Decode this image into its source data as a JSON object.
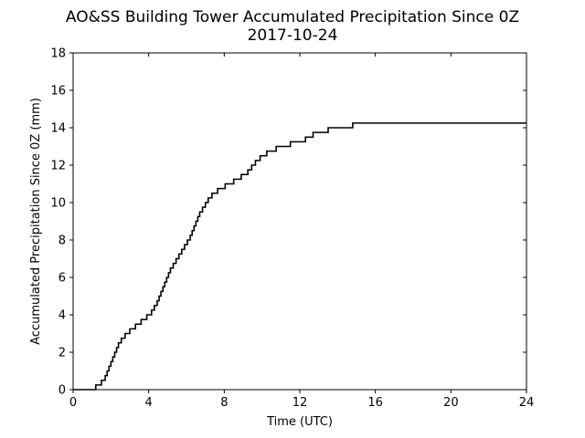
{
  "chart_data": {
    "type": "line",
    "title": "AO&SS Building Tower Accumulated Precipitation Since 0Z",
    "subtitle": "2017-10-24",
    "xlabel": "Time (UTC)",
    "ylabel": "Accumulated Precipitation Since 0Z (mm)",
    "xlim": [
      0,
      24
    ],
    "ylim": [
      0,
      18
    ],
    "xticks": [
      0,
      4,
      8,
      12,
      16,
      20,
      24
    ],
    "yticks": [
      0,
      2,
      4,
      6,
      8,
      10,
      12,
      14,
      16,
      18
    ],
    "grid": false,
    "line_color": "#000000",
    "step": true,
    "series": [
      {
        "x": [
          0,
          1.2,
          1.5,
          1.7,
          1.8,
          1.9,
          2.0,
          2.1,
          2.2,
          2.3,
          2.4,
          2.55,
          2.75,
          3.0,
          3.3,
          3.6,
          3.9,
          4.15,
          4.3,
          4.45,
          4.55,
          4.65,
          4.75,
          4.85,
          4.95,
          5.05,
          5.15,
          5.3,
          5.45,
          5.6,
          5.75,
          5.9,
          6.05,
          6.2,
          6.3,
          6.4,
          6.5,
          6.6,
          6.7,
          6.85,
          7.0,
          7.15,
          7.35,
          7.65,
          8.05,
          8.5,
          8.9,
          9.25,
          9.45,
          9.65,
          9.9,
          10.25,
          10.75,
          11.5,
          12.3,
          12.7,
          13.5,
          14.8,
          24
        ],
        "y": [
          0,
          0.25,
          0.5,
          0.75,
          1.0,
          1.25,
          1.5,
          1.75,
          2.0,
          2.25,
          2.5,
          2.75,
          3.0,
          3.25,
          3.5,
          3.75,
          4.0,
          4.25,
          4.5,
          4.75,
          5.0,
          5.25,
          5.5,
          5.75,
          6.0,
          6.25,
          6.5,
          6.75,
          7.0,
          7.25,
          7.5,
          7.75,
          8.0,
          8.25,
          8.5,
          8.75,
          9.0,
          9.25,
          9.5,
          9.75,
          10.0,
          10.25,
          10.5,
          10.75,
          11.0,
          11.25,
          11.5,
          11.75,
          12.0,
          12.25,
          12.5,
          12.75,
          13.0,
          13.25,
          13.5,
          13.75,
          14.0,
          14.25,
          14.25
        ]
      }
    ]
  }
}
